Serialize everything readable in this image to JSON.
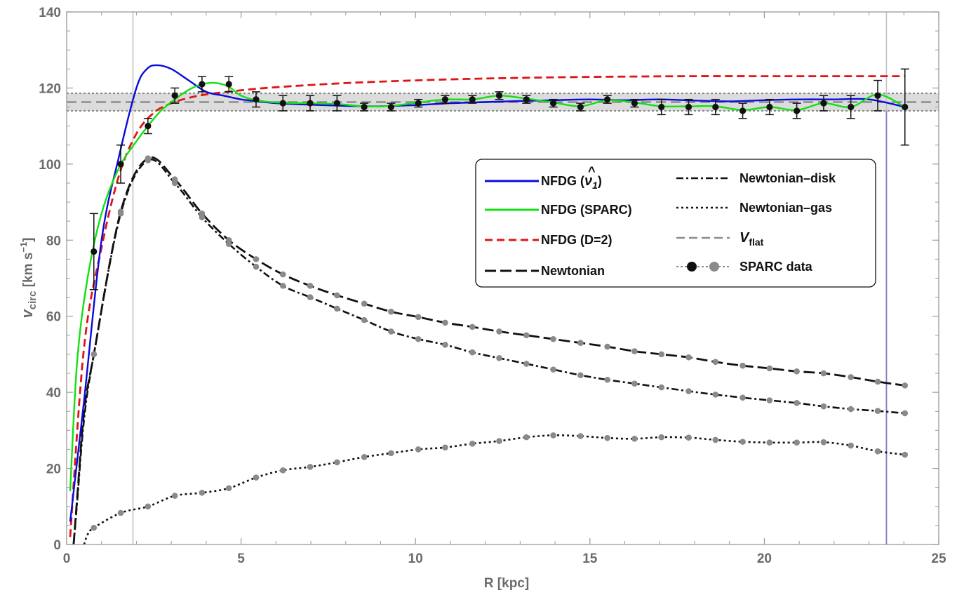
{
  "chart_data": {
    "type": "line",
    "xlabel": "R [kpc]",
    "ylabel": {
      "base": "v",
      "sub": "circ",
      "unit_pre": " [km s",
      "unit_sup": "−1",
      "unit_post": "]"
    },
    "xlim": [
      0,
      25
    ],
    "ylim": [
      0,
      140
    ],
    "xticks": [
      0,
      5,
      10,
      15,
      20,
      25
    ],
    "yticks": [
      0,
      20,
      40,
      60,
      80,
      100,
      120,
      140
    ],
    "grid": false,
    "legend_placement": "center-right",
    "v_flat": {
      "value": 116.3,
      "band": [
        114.0,
        118.6
      ]
    },
    "vertical_lines": [
      1.9,
      23.5
    ],
    "colors": {
      "nfdg_nu1": "#0a0adf",
      "nfdg_sparc": "#12e012",
      "nfdg_d2": "#e01414",
      "newtonian": "#111111",
      "vflat": "#8c8c8c",
      "data_black": "#111111",
      "data_gray": "#8a8a8a",
      "tick_text": "#6b6b6b"
    },
    "legend": {
      "nfdg_nu1": {
        "text": "NFDG (",
        "sym": "ν",
        "hat": "^",
        "sub": "1",
        "close": ")"
      },
      "nfdg_sparc": "NFDG (SPARC)",
      "nfdg_d2": "NFDG (D=2)",
      "newtonian": "Newtonian",
      "newtonian_disk": "Newtonian–disk",
      "newtonian_gas": "Newtonian–gas",
      "vflat": {
        "base": "V",
        "sub": "flat"
      },
      "sparc_data": "SPARC data"
    },
    "sparc_data": [
      {
        "x": 0.78,
        "y": 77,
        "err": 10
      },
      {
        "x": 1.55,
        "y": 100,
        "err": 5
      },
      {
        "x": 2.33,
        "y": 110,
        "err": 2
      },
      {
        "x": 3.1,
        "y": 118,
        "err": 2
      },
      {
        "x": 3.88,
        "y": 121,
        "err": 2
      },
      {
        "x": 4.65,
        "y": 121,
        "err": 2
      },
      {
        "x": 5.43,
        "y": 117,
        "err": 2
      },
      {
        "x": 6.2,
        "y": 116,
        "err": 2
      },
      {
        "x": 6.98,
        "y": 116,
        "err": 2
      },
      {
        "x": 7.75,
        "y": 116,
        "err": 2
      },
      {
        "x": 8.53,
        "y": 115,
        "err": 1
      },
      {
        "x": 9.3,
        "y": 115,
        "err": 1
      },
      {
        "x": 10.08,
        "y": 116,
        "err": 1
      },
      {
        "x": 10.85,
        "y": 117,
        "err": 1
      },
      {
        "x": 11.63,
        "y": 117,
        "err": 1
      },
      {
        "x": 12.4,
        "y": 118,
        "err": 1
      },
      {
        "x": 13.18,
        "y": 117,
        "err": 1
      },
      {
        "x": 13.95,
        "y": 116,
        "err": 1
      },
      {
        "x": 14.73,
        "y": 115,
        "err": 1
      },
      {
        "x": 15.5,
        "y": 117,
        "err": 1
      },
      {
        "x": 16.28,
        "y": 116,
        "err": 1
      },
      {
        "x": 17.05,
        "y": 115,
        "err": 2
      },
      {
        "x": 17.83,
        "y": 115,
        "err": 2
      },
      {
        "x": 18.6,
        "y": 115,
        "err": 2
      },
      {
        "x": 19.38,
        "y": 114,
        "err": 2
      },
      {
        "x": 20.15,
        "y": 115,
        "err": 2
      },
      {
        "x": 20.93,
        "y": 114,
        "err": 2
      },
      {
        "x": 21.7,
        "y": 116,
        "err": 2
      },
      {
        "x": 22.48,
        "y": 115,
        "err": 3
      },
      {
        "x": 23.25,
        "y": 118,
        "err": 4
      },
      {
        "x": 24.03,
        "y": 115,
        "err": 10
      }
    ],
    "newtonian_disk_points": {
      "x": [
        0.78,
        1.55,
        2.33,
        3.1,
        3.88,
        4.65,
        5.43,
        6.2,
        6.98,
        7.75,
        8.53,
        9.3,
        10.08,
        10.85,
        11.63,
        12.4,
        13.18,
        13.95,
        14.73,
        15.5,
        16.28,
        17.05,
        17.83,
        18.6,
        19.38,
        20.15,
        20.93,
        21.7,
        22.48,
        23.25,
        24.03
      ],
      "y": [
        50,
        87,
        101,
        95,
        86,
        79,
        73,
        68,
        65,
        62,
        59,
        56,
        54,
        52.5,
        50.5,
        49,
        47.5,
        46,
        44.5,
        43.3,
        42.3,
        41.3,
        40.3,
        39.4,
        38.6,
        37.9,
        37.2,
        36.3,
        35.6,
        35.1,
        34.5
      ]
    },
    "newtonian_gas_points": {
      "x": [
        0.78,
        1.55,
        2.33,
        3.1,
        3.88,
        4.65,
        5.43,
        6.2,
        6.98,
        7.75,
        8.53,
        9.3,
        10.08,
        10.85,
        11.63,
        12.4,
        13.18,
        13.95,
        14.73,
        15.5,
        16.28,
        17.05,
        17.83,
        18.6,
        19.38,
        20.15,
        20.93,
        21.7,
        22.48,
        23.25,
        24.03
      ],
      "y": [
        4.4,
        8.3,
        10,
        12.8,
        13.6,
        14.8,
        17.6,
        19.5,
        20.4,
        21.6,
        23,
        24,
        25,
        25.5,
        26.5,
        27.2,
        28.2,
        28.7,
        28.5,
        28,
        27.8,
        28.2,
        28.1,
        27.5,
        27,
        26.8,
        26.8,
        26.9,
        26,
        24.5,
        23.6
      ]
    },
    "newtonian_points": {
      "x": [
        0.78,
        1.55,
        2.33,
        3.1,
        3.88,
        4.65,
        5.43,
        6.2,
        6.98,
        7.75,
        8.53,
        9.3,
        10.08,
        10.85,
        11.63,
        12.4,
        13.18,
        13.95,
        14.73,
        15.5,
        16.28,
        17.05,
        17.83,
        18.6,
        19.38,
        20.15,
        20.93,
        21.7,
        22.48,
        23.25,
        24.03
      ],
      "y": [
        50,
        87.5,
        101.5,
        96,
        87,
        80,
        75,
        71,
        68,
        65.5,
        63.3,
        61.2,
        59.8,
        58.3,
        57.2,
        56,
        55,
        54,
        53,
        52,
        50.8,
        50,
        49.2,
        48,
        47,
        46.3,
        45.5,
        45,
        44,
        42.8,
        41.8
      ]
    },
    "nfdg_nu1_curve": {
      "x": [
        0.1,
        0.5,
        1.0,
        1.5,
        2.0,
        2.3,
        2.6,
        3.0,
        3.5,
        4.0,
        4.5,
        5.0,
        5.5,
        6.0,
        7.0,
        8.0,
        9.0,
        10.0,
        11.0,
        12.0,
        13.0,
        14.0,
        15.0,
        16.0,
        17.0,
        18.0,
        19.0,
        20.0,
        21.0,
        22.0,
        23.0,
        24.03
      ],
      "y": [
        6,
        38,
        80,
        102,
        120,
        125,
        126,
        125,
        122,
        119,
        118,
        117,
        116.5,
        116,
        115.6,
        115.3,
        115.2,
        115.5,
        116,
        116.3,
        116.6,
        116.8,
        117,
        116.8,
        117,
        116.7,
        116.5,
        116.8,
        117,
        117,
        117,
        115
      ]
    },
    "nfdg_sparc_curve": {
      "x": [
        0.1,
        0.3,
        0.6,
        1.0,
        1.5,
        2.0,
        2.33,
        2.7,
        3.1,
        3.5,
        3.88,
        4.3,
        4.65,
        5.0,
        5.43,
        6.0,
        6.98,
        7.75,
        8.53,
        9.3,
        10.08,
        10.85,
        11.63,
        12.4,
        13.18,
        13.95,
        14.73,
        15.5,
        16.28,
        17.05,
        17.83,
        18.6,
        19.38,
        20.15,
        20.93,
        21.7,
        22.48,
        23.25,
        24.03
      ],
      "y": [
        14,
        48,
        70,
        87,
        99,
        106,
        110,
        114,
        117,
        119.5,
        121,
        121.3,
        120.3,
        118,
        116.8,
        116.2,
        116,
        115.8,
        115.2,
        115.3,
        116.2,
        117,
        117,
        118,
        117.2,
        116.2,
        115.2,
        116.8,
        116.2,
        115.2,
        115.2,
        115.2,
        114.2,
        115,
        114.2,
        116,
        115,
        118.3,
        115
      ]
    },
    "nfdg_d2_curve": {
      "x": [
        0.1,
        0.5,
        1.0,
        1.5,
        2.0,
        2.5,
        3.0,
        3.5,
        4.0,
        5.0,
        6.0,
        8.0,
        10.0,
        12.0,
        14.0,
        16.0,
        18.0,
        20.0,
        22.0,
        24.03
      ],
      "y": [
        2,
        52,
        78,
        97,
        108,
        113.5,
        116,
        117.4,
        118.3,
        119.4,
        120.2,
        121.3,
        122,
        122.5,
        122.8,
        123,
        123.1,
        123.1,
        123.1,
        123.1
      ]
    }
  }
}
